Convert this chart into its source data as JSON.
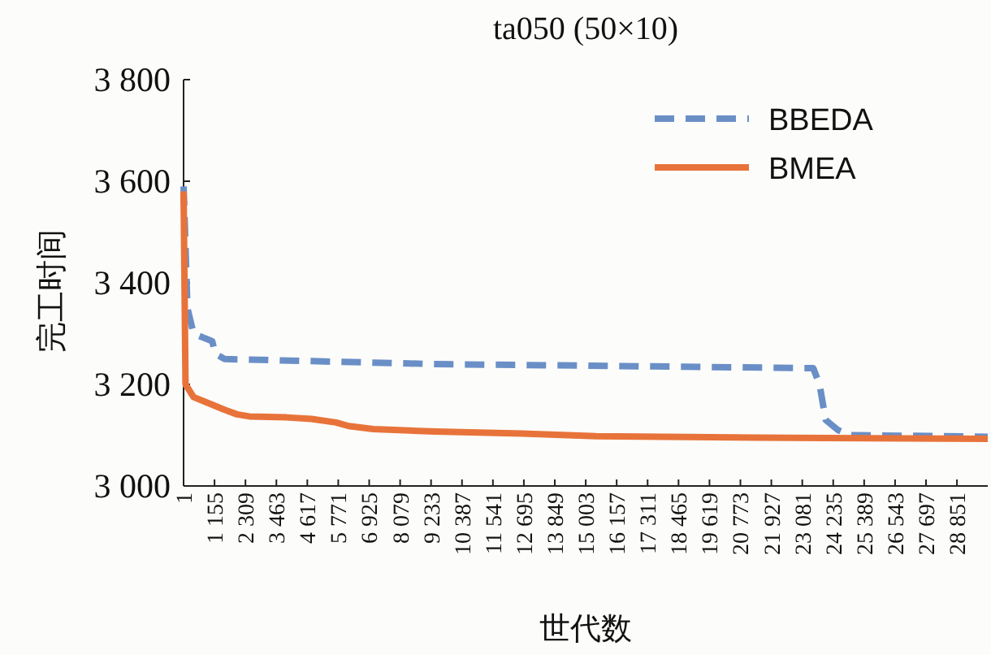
{
  "chart_data": {
    "type": "line",
    "title": "ta050 (50×10)",
    "xlabel": "世代数",
    "ylabel": "完工时间",
    "xlim": [
      1,
      30000
    ],
    "ylim": [
      3000,
      3800
    ],
    "yticks": [
      {
        "value": 3000,
        "label": "3 000"
      },
      {
        "value": 3200,
        "label": "3 200"
      },
      {
        "value": 3400,
        "label": "3 400"
      },
      {
        "value": 3600,
        "label": "3 600"
      },
      {
        "value": 3800,
        "label": "3 800"
      }
    ],
    "xticks": [
      {
        "value": 1,
        "label": "1"
      },
      {
        "value": 1155,
        "label": "1 155"
      },
      {
        "value": 2309,
        "label": "2 309"
      },
      {
        "value": 3463,
        "label": "3 463"
      },
      {
        "value": 4617,
        "label": "4 617"
      },
      {
        "value": 5771,
        "label": "5 771"
      },
      {
        "value": 6925,
        "label": "6 925"
      },
      {
        "value": 8079,
        "label": "8 079"
      },
      {
        "value": 9233,
        "label": "9 233"
      },
      {
        "value": 10387,
        "label": "10 387"
      },
      {
        "value": 11541,
        "label": "11 541"
      },
      {
        "value": 12695,
        "label": "12 695"
      },
      {
        "value": 13849,
        "label": "13 849"
      },
      {
        "value": 15003,
        "label": "15 003"
      },
      {
        "value": 16157,
        "label": "16 157"
      },
      {
        "value": 17311,
        "label": "17 311"
      },
      {
        "value": 18465,
        "label": "18 465"
      },
      {
        "value": 19619,
        "label": "19 619"
      },
      {
        "value": 20773,
        "label": "20 773"
      },
      {
        "value": 21927,
        "label": "21 927"
      },
      {
        "value": 23081,
        "label": "23 081"
      },
      {
        "value": 24235,
        "label": "24 235"
      },
      {
        "value": 25389,
        "label": "25 389"
      },
      {
        "value": 26543,
        "label": "26 543"
      },
      {
        "value": 27697,
        "label": "27 697"
      },
      {
        "value": 28851,
        "label": "28 851"
      }
    ],
    "legend": "top right",
    "grid": false,
    "marker": "none",
    "series": [
      {
        "name": "BBEDA",
        "color": "#6a8fc7",
        "line_style": "dashed",
        "x": [
          1,
          145,
          374,
          1070,
          1185,
          1530,
          9390,
          23490,
          23725,
          23955,
          24415,
          24880,
          30000
        ],
        "values": [
          3590,
          3350,
          3300,
          3285,
          3260,
          3250,
          3240,
          3232,
          3200,
          3130,
          3110,
          3100,
          3097
        ]
      },
      {
        "name": "BMEA",
        "color": "#e8733a",
        "line_style": "solid",
        "x": [
          1,
          73,
          374,
          1070,
          1530,
          1995,
          2455,
          3840,
          4770,
          5690,
          6155,
          7080,
          9390,
          12625,
          15400,
          21410,
          30000
        ],
        "values": [
          3580,
          3200,
          3175,
          3160,
          3150,
          3141,
          3137,
          3135,
          3132,
          3125,
          3118,
          3112,
          3107,
          3103,
          3098,
          3095,
          3093
        ]
      }
    ]
  }
}
